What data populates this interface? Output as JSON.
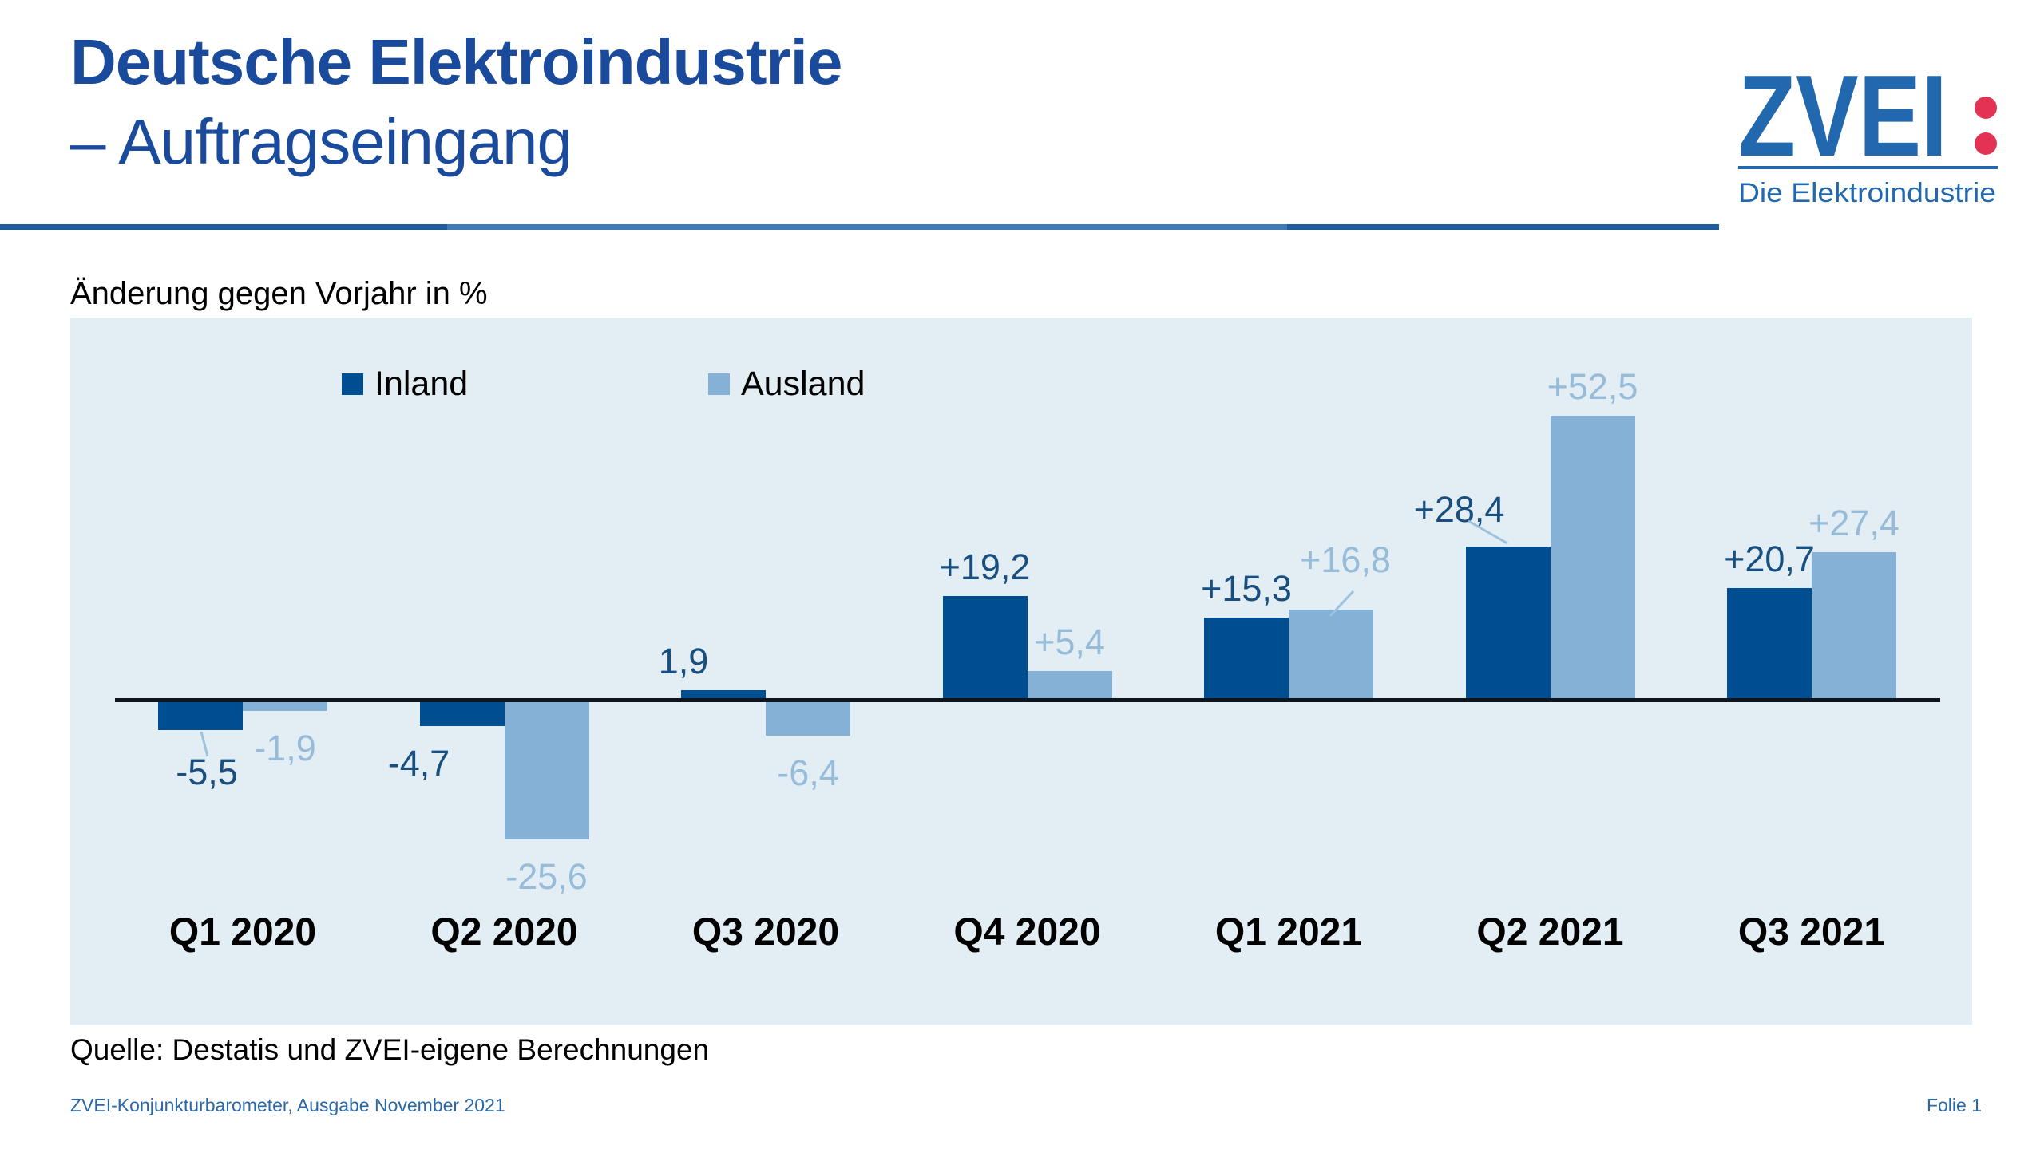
{
  "header": {
    "title_line1": "Deutsche Elektroindustrie",
    "title_line2": "– Auftragseingang",
    "title_color": "#1A4A9C",
    "rule_color_dark": "#1E5C9E",
    "rule_color_light": "#3F7BB6"
  },
  "logo": {
    "brand": "ZVEI",
    "tagline": "Die Elektroindustrie",
    "blue": "#2268AE",
    "red": "#E23352"
  },
  "legend": [
    {
      "label": "Inland",
      "color": "#004E92"
    },
    {
      "label": "Ausland",
      "color": "#84B1D5"
    }
  ],
  "chart_data": {
    "type": "bar",
    "title": "Änderung gegen Vorjahr in %",
    "categories": [
      "Q1 2020",
      "Q2 2020",
      "Q3 2020",
      "Q4 2020",
      "Q1 2021",
      "Q2 2021",
      "Q3 2021"
    ],
    "series": [
      {
        "name": "Inland",
        "color": "#004E92",
        "values": [
          -5.5,
          -4.7,
          1.9,
          19.2,
          15.3,
          28.4,
          20.7
        ],
        "labels": [
          "-5,5",
          "-4,7",
          "1,9",
          "+19,2",
          "+15,3",
          "+28,4",
          "+20,7"
        ],
        "label_color": "#184F7E"
      },
      {
        "name": "Ausland",
        "color": "#84B1D5",
        "values": [
          -1.9,
          -25.6,
          -6.4,
          5.4,
          16.8,
          52.5,
          27.4
        ],
        "labels": [
          "-1,9",
          "-25,6",
          "-6,4",
          "+5,4",
          "+16,8",
          "+52,5",
          "+27,4"
        ],
        "label_color": "#97BCDA"
      }
    ],
    "ylim": [
      -35,
      65
    ],
    "grid": false,
    "zero_line_color": "#10141c",
    "plot_background": "#E3EDF4",
    "legend_position": "top-inside"
  },
  "source": "Quelle: Destatis und ZVEI-eigene Berechnungen",
  "footer": {
    "left": "ZVEI-Konjunkturbarometer, Ausgabe November 2021",
    "right": "Folie 1"
  }
}
